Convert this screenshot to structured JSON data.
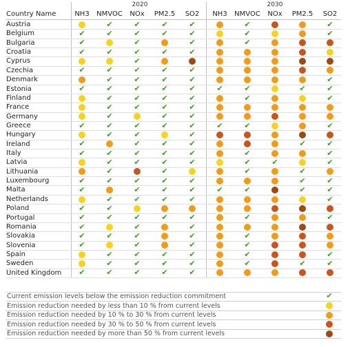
{
  "header": {
    "country_label": "Country Name",
    "years": [
      "2020",
      "2030"
    ],
    "pollutants": [
      "NH3",
      "NMVOC",
      "NOx",
      "PM2.5",
      "SO2"
    ]
  },
  "symbols": {
    "ok": {
      "shape": "check",
      "color": "#3a9e22"
    },
    "y": {
      "shape": "circle",
      "color": "#f7d21e"
    },
    "o": {
      "shape": "circle",
      "color": "#f19b19"
    },
    "r": {
      "shape": "circle",
      "color": "#c8561c"
    },
    "b": {
      "shape": "circle",
      "color": "#9c4a12"
    }
  },
  "legend": [
    {
      "label": "Current emission levels below the emission reduction commitment",
      "symbol": "ok"
    },
    {
      "label": "Emission reduction needed by less than 10 % from current levels",
      "symbol": "y"
    },
    {
      "label": "Emission reduction needed by 10 % to 30 % from current levels",
      "symbol": "o"
    },
    {
      "label": "Emission reduction needed by 30 % to 50 % from current levels",
      "symbol": "r"
    },
    {
      "label": "Emission reduction needed by more than 50 % from current levels",
      "symbol": "b"
    }
  ],
  "chart_data": {
    "type": "table",
    "columns": [
      "NH3 2020",
      "NMVOC 2020",
      "NOx 2020",
      "PM2.5 2020",
      "SO2 2020",
      "NH3 2030",
      "NMVOC 2030",
      "NOx 2030",
      "PM2.5 2030",
      "SO2 2030"
    ],
    "rows": [
      {
        "country": "Austria",
        "values": [
          "y",
          "ok",
          "ok",
          "ok",
          "ok",
          "o",
          "ok",
          "r",
          "o",
          "ok"
        ]
      },
      {
        "country": "Belgium",
        "values": [
          "ok",
          "ok",
          "ok",
          "ok",
          "ok",
          "y",
          "ok",
          "y",
          "o",
          "ok"
        ]
      },
      {
        "country": "Bulgaria",
        "values": [
          "ok",
          "y",
          "ok",
          "o",
          "ok",
          "o",
          "ok",
          "o",
          "r",
          "r"
        ]
      },
      {
        "country": "Croatia",
        "values": [
          "ok",
          "ok",
          "ok",
          "ok",
          "ok",
          "o",
          "o",
          "o",
          "r",
          "y"
        ]
      },
      {
        "country": "Cyprus",
        "values": [
          "y",
          "y",
          "ok",
          "o",
          "b",
          "o",
          "o",
          "o",
          "b",
          "b"
        ]
      },
      {
        "country": "Czechia",
        "values": [
          "ok",
          "ok",
          "ok",
          "ok",
          "ok",
          "o",
          "o",
          "o",
          "r",
          "o"
        ]
      },
      {
        "country": "Denmark",
        "values": [
          "o",
          "ok",
          "ok",
          "ok",
          "ok",
          "o",
          "o",
          "o",
          "o",
          "ok"
        ]
      },
      {
        "country": "Estonia",
        "values": [
          "ok",
          "ok",
          "ok",
          "ok",
          "ok",
          "ok",
          "ok",
          "y",
          "ok",
          "ok"
        ]
      },
      {
        "country": "Finland",
        "values": [
          "y",
          "ok",
          "ok",
          "ok",
          "ok",
          "o",
          "ok",
          "o",
          "y",
          "ok"
        ]
      },
      {
        "country": "France",
        "values": [
          "y",
          "ok",
          "ok",
          "ok",
          "ok",
          "o",
          "o",
          "o",
          "o",
          "o"
        ]
      },
      {
        "country": "Germany",
        "values": [
          "y",
          "ok",
          "y",
          "ok",
          "ok",
          "o",
          "o",
          "r",
          "o",
          "o"
        ]
      },
      {
        "country": "Greece",
        "values": [
          "ok",
          "ok",
          "ok",
          "ok",
          "ok",
          "ok",
          "ok",
          "y",
          "o",
          "ok"
        ]
      },
      {
        "country": "Hungary",
        "values": [
          "y",
          "ok",
          "ok",
          "y",
          "ok",
          "r",
          "r",
          "o",
          "b",
          "r"
        ]
      },
      {
        "country": "Ireland",
        "values": [
          "ok",
          "o",
          "ok",
          "ok",
          "ok",
          "o",
          "r",
          "o",
          "ok",
          "ok"
        ]
      },
      {
        "country": "Italy",
        "values": [
          "ok",
          "ok",
          "ok",
          "ok",
          "ok",
          "o",
          "ok",
          "o",
          "o",
          "ok"
        ]
      },
      {
        "country": "Latvia",
        "values": [
          "y",
          "ok",
          "ok",
          "ok",
          "ok",
          "y",
          "ok",
          "ok",
          "y",
          "ok"
        ]
      },
      {
        "country": "Lithuania",
        "values": [
          "o",
          "ok",
          "r",
          "ok",
          "y",
          "o",
          "ok",
          "o",
          "ok",
          "o"
        ]
      },
      {
        "country": "Luxembourg",
        "values": [
          "ok",
          "ok",
          "ok",
          "ok",
          "ok",
          "o",
          "o",
          "o",
          "ok",
          "ok"
        ]
      },
      {
        "country": "Malta",
        "values": [
          "ok",
          "o",
          "ok",
          "ok",
          "ok",
          "ok",
          "ok",
          "b",
          "ok",
          "ok"
        ]
      },
      {
        "country": "Netherlands",
        "values": [
          "y",
          "ok",
          "ok",
          "ok",
          "ok",
          "o",
          "o",
          "o",
          "y",
          "ok"
        ]
      },
      {
        "country": "Poland",
        "values": [
          "ok",
          "ok",
          "y",
          "o",
          "o",
          "o",
          "o",
          "r",
          "b",
          "r"
        ]
      },
      {
        "country": "Portugal",
        "values": [
          "ok",
          "ok",
          "ok",
          "ok",
          "ok",
          "o",
          "ok",
          "o",
          "o",
          "ok"
        ]
      },
      {
        "country": "Romania",
        "values": [
          "ok",
          "y",
          "ok",
          "o",
          "ok",
          "o",
          "o",
          "o",
          "b",
          "r"
        ]
      },
      {
        "country": "Slovakia",
        "values": [
          "ok",
          "ok",
          "ok",
          "o",
          "ok",
          "o",
          "ok",
          "o",
          "r",
          "o"
        ]
      },
      {
        "country": "Slovenia",
        "values": [
          "ok",
          "y",
          "ok",
          "o",
          "ok",
          "o",
          "ok",
          "r",
          "r",
          "o"
        ]
      },
      {
        "country": "Spain",
        "values": [
          "y",
          "ok",
          "ok",
          "ok",
          "ok",
          "o",
          "ok",
          "r",
          "r",
          "ok"
        ]
      },
      {
        "country": "Sweden",
        "values": [
          "y",
          "ok",
          "ok",
          "ok",
          "ok",
          "o",
          "ok",
          "r",
          "ok",
          "ok"
        ]
      },
      {
        "country": "United Kingdom",
        "values": [
          "ok",
          "ok",
          "ok",
          "ok",
          "ok",
          "o",
          "o",
          "o",
          "r",
          "r"
        ]
      }
    ]
  }
}
